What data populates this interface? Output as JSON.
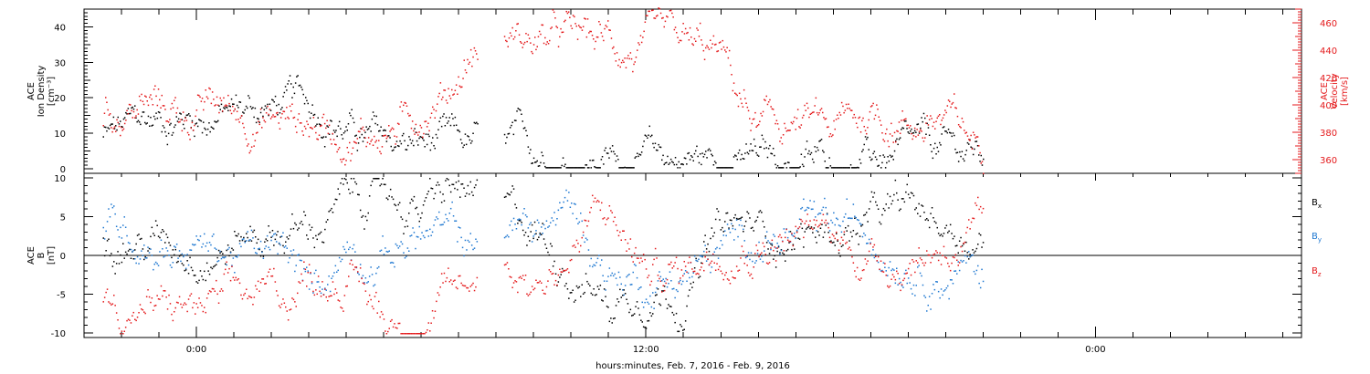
{
  "chart_data": [
    {
      "type": "scatter",
      "panel": "top",
      "ylabel_left": [
        "ACE",
        "Ion Density",
        "[cm⁻³]"
      ],
      "ylabel_right": [
        "ACE",
        "Velocity",
        "[km/s]"
      ],
      "ylim_left": [
        0,
        45
      ],
      "ylim_right": [
        350,
        470
      ],
      "yticks_left": [
        "0",
        "10",
        "20",
        "30",
        "40"
      ],
      "yticks_right": [
        "360",
        "380",
        "400",
        "420",
        "440",
        "460"
      ],
      "grid": false,
      "data_gap_hours": [
        7.5,
        8.2
      ],
      "series": [
        {
          "name": "Ion Density",
          "axis": "left",
          "color": "#000000",
          "x": [
            -2.5,
            -1.5,
            -0.5,
            0.5,
            1.5,
            2.5,
            3.5,
            4.5,
            5.5,
            6.5,
            7.3,
            8.5,
            9.5,
            10.5,
            11.5,
            12.5,
            13.5,
            14.5,
            15.5,
            16.5,
            17.5,
            18.5,
            19.5,
            20.5,
            21.0
          ],
          "y": [
            9,
            12,
            15,
            16,
            17,
            18,
            17,
            8,
            7,
            6,
            5,
            4.5,
            4,
            3.5,
            3.2,
            3,
            3,
            2.5,
            2,
            2,
            2.5,
            3,
            3.5,
            4,
            3.5
          ]
        },
        {
          "name": "Velocity",
          "axis": "right",
          "color": "#e41a1c",
          "x": [
            -2.5,
            -1.5,
            -0.5,
            0.5,
            1.5,
            2.5,
            3.5,
            4.5,
            5.5,
            6.0,
            6.5,
            7.0,
            7.3,
            8.3,
            9.0,
            10.0,
            11.0,
            12.0,
            13.0,
            14.0,
            14.5,
            15.0,
            16.0,
            17.0,
            18.0,
            19.0,
            20.0,
            20.5,
            21.0
          ],
          "y": [
            395,
            400,
            395,
            397,
            393,
            390,
            385,
            380,
            385,
            400,
            410,
            425,
            440,
            452,
            448,
            447,
            445,
            437,
            435,
            432,
            402,
            380,
            385,
            378,
            395,
            390,
            390,
            375,
            368
          ]
        }
      ]
    },
    {
      "type": "scatter",
      "panel": "bottom",
      "ylabel": [
        "ACE",
        "B",
        "[nT]"
      ],
      "ylim": [
        -10,
        10
      ],
      "yticks": [
        "-10",
        "-5",
        "0",
        "5",
        "10"
      ],
      "grid": false,
      "zero_line": true,
      "xlabel": "hours:minutes, Feb.  7, 2016 - Feb.  9, 2016",
      "xlim_hours": [
        -3,
        29.5
      ],
      "xticks": [
        {
          "hours": 0,
          "label": "0:00"
        },
        {
          "hours": 12,
          "label": "12:00"
        },
        {
          "hours": 24,
          "label": "0:00"
        }
      ],
      "legend": [
        {
          "text": "B",
          "sub": "x",
          "color": "#000000"
        },
        {
          "text": "B",
          "sub": "y",
          "color": "#1f78d1"
        },
        {
          "text": "B",
          "sub": "z",
          "color": "#e41a1c"
        }
      ],
      "legend_placement": "right",
      "series": [
        {
          "name": "Bx",
          "color": "#000000",
          "x": [
            -2.5,
            -1.5,
            -0.5,
            0.5,
            1.5,
            2.5,
            3.0,
            4.0,
            5.0,
            6.0,
            7.0,
            7.3,
            8.3,
            9.0,
            10.0,
            10.5,
            11.0,
            12.0,
            13.0,
            14.0,
            15.0,
            16.0,
            17.0,
            18.0,
            19.0,
            20.0,
            21.0
          ],
          "y": [
            3,
            2,
            2,
            2,
            3,
            4,
            3,
            7,
            8,
            6,
            8,
            6,
            4,
            3,
            -1,
            -3,
            -6,
            -3,
            -4,
            3,
            3,
            3,
            3,
            4,
            5,
            4,
            3
          ]
        },
        {
          "name": "By",
          "color": "#1f78d1",
          "x": [
            -2.5,
            -1.5,
            -0.5,
            0.5,
            1.5,
            2.5,
            3.0,
            4.0,
            5.0,
            6.0,
            7.0,
            7.3,
            8.3,
            9.0,
            10.0,
            10.5,
            11.0,
            12.0,
            13.0,
            14.0,
            15.0,
            16.0,
            17.0,
            18.0,
            19.0,
            20.0,
            21.0
          ],
          "y": [
            4,
            3,
            2,
            1,
            0,
            -1,
            -6,
            2,
            1,
            3,
            2,
            1,
            4,
            3,
            6,
            2,
            -2,
            -3,
            -2,
            0,
            3,
            2,
            3,
            3,
            1,
            -1,
            -2
          ]
        },
        {
          "name": "Bz",
          "color": "#e41a1c",
          "x": [
            -2.5,
            -1.5,
            -0.5,
            0.5,
            1.5,
            2.5,
            3.0,
            4.0,
            5.0,
            6.0,
            7.0,
            7.3,
            8.3,
            9.0,
            10.0,
            10.5,
            11.0,
            12.0,
            13.0,
            14.0,
            15.0,
            16.0,
            17.0,
            18.0,
            19.0,
            20.0,
            21.0
          ],
          "y": [
            -6,
            -7,
            -7,
            -7,
            -6,
            -5,
            -2,
            -2,
            -8,
            -8,
            -5,
            -4,
            0,
            -3,
            0,
            4,
            5,
            -2,
            -2,
            3,
            3,
            3,
            2,
            0,
            0,
            2,
            2
          ]
        }
      ]
    }
  ]
}
